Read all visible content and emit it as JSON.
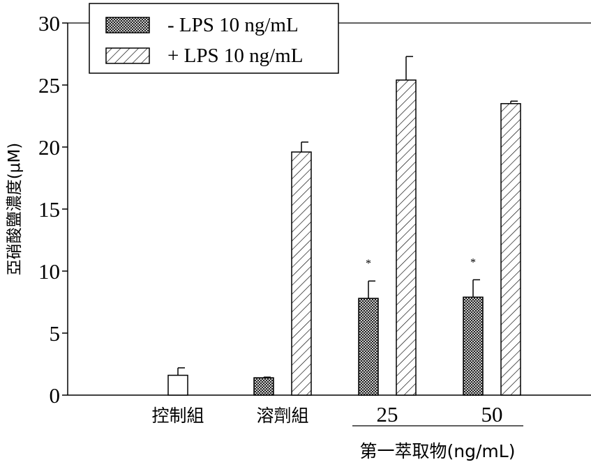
{
  "chart_data": {
    "type": "bar",
    "title": "",
    "ylabel": "亞硝酸鹽濃度(μM)",
    "xlabel": "第一萃取物(ng/mL)",
    "ylim": [
      0,
      30
    ],
    "yticks": [
      0,
      5,
      10,
      15,
      20,
      25,
      30
    ],
    "categories": [
      "控制組",
      "溶劑組",
      "25",
      "50"
    ],
    "legend_position": "top-left",
    "series": [
      {
        "name": "- LPS 10 ng/mL",
        "pattern": "crosshatch",
        "values": [
          1.6,
          1.4,
          7.8,
          7.9
        ],
        "errors": [
          0.6,
          0.05,
          1.4,
          1.4
        ],
        "annotations": [
          "",
          "",
          "*",
          "*"
        ]
      },
      {
        "name": "+ LPS 10 ng/mL",
        "pattern": "diagonal",
        "values": [
          null,
          19.6,
          25.4,
          23.5
        ],
        "errors": [
          null,
          0.8,
          1.9,
          0.2
        ],
        "annotations": [
          "",
          "",
          "",
          ""
        ]
      }
    ],
    "notes": "The 控制組 bar is drawn open (white, no pattern).",
    "colors": {
      "axis": "#000000",
      "bar_fill": "#ffffff",
      "hatch": "#000000"
    }
  }
}
